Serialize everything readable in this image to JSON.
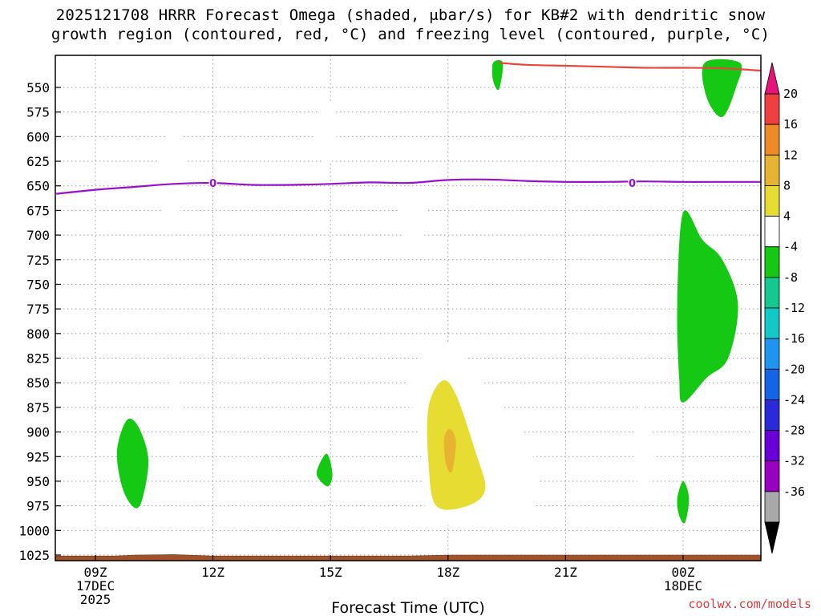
{
  "chart_data": {
    "type": "heatmap",
    "title_line1": "2025121708 HRRR Forecast Omega (shaded, μbar/s) for KB#2 with dendritic snow",
    "title_line2": "growth region (contoured, red, °C) and freezing level (contoured, purple, °C)",
    "xlabel": "Forecast Time (UTC)",
    "ylabel": "",
    "credit": "coolwx.com/models",
    "y_axis": {
      "ticks": [
        550,
        575,
        600,
        625,
        650,
        675,
        700,
        725,
        750,
        775,
        800,
        825,
        850,
        875,
        900,
        925,
        950,
        975,
        1000,
        1025
      ],
      "range": [
        525,
        1030
      ]
    },
    "x_axis": {
      "range_hours": [
        8,
        26
      ],
      "ticks": [
        {
          "hour": 9,
          "label": "09Z",
          "sub1": "17DEC",
          "sub2": "2025"
        },
        {
          "hour": 12,
          "label": "12Z",
          "sub1": "",
          "sub2": ""
        },
        {
          "hour": 15,
          "label": "15Z",
          "sub1": "",
          "sub2": ""
        },
        {
          "hour": 18,
          "label": "18Z",
          "sub1": "",
          "sub2": ""
        },
        {
          "hour": 21,
          "label": "21Z",
          "sub1": "",
          "sub2": ""
        },
        {
          "hour": 24,
          "label": "00Z",
          "sub1": "18DEC",
          "sub2": ""
        }
      ]
    },
    "colorbar": {
      "levels": [
        -36,
        -32,
        -28,
        -24,
        -20,
        -16,
        -12,
        -8,
        -4,
        4,
        8,
        12,
        16,
        20
      ],
      "colors": [
        "#a9a9a9",
        "#9900c0",
        "#6a00d8",
        "#2a2ad8",
        "#1464e6",
        "#1e96f0",
        "#14c8c8",
        "#14c890",
        "#14c814",
        "#ffffff",
        "#e6dc32",
        "#e6b432",
        "#ee8a28",
        "#ee4040"
      ],
      "extend_low_color": "#000000",
      "extend_high_color": "#e6147a"
    },
    "contour_labels": {
      "freezing_level": "0",
      "freezing_level_color": "#9a10c8",
      "dgz_color": "#e8463c"
    },
    "freezing_level": [
      {
        "t": 8.0,
        "p": 658
      },
      {
        "t": 9.0,
        "p": 654
      },
      {
        "t": 10.0,
        "p": 651
      },
      {
        "t": 11.0,
        "p": 648
      },
      {
        "t": 12.0,
        "p": 647
      },
      {
        "t": 13.0,
        "p": 649
      },
      {
        "t": 14.0,
        "p": 649
      },
      {
        "t": 15.0,
        "p": 648
      },
      {
        "t": 16.0,
        "p": 646.5
      },
      {
        "t": 17.0,
        "p": 647
      },
      {
        "t": 18.0,
        "p": 644
      },
      {
        "t": 19.0,
        "p": 643.5
      },
      {
        "t": 20.0,
        "p": 645
      },
      {
        "t": 21.0,
        "p": 646
      },
      {
        "t": 22.0,
        "p": 646
      },
      {
        "t": 23.0,
        "p": 645.5
      },
      {
        "t": 24.0,
        "p": 646
      },
      {
        "t": 25.0,
        "p": 646
      },
      {
        "t": 26.0,
        "p": 646
      }
    ],
    "dgz_top": [
      {
        "t": 19.3,
        "p": 525
      },
      {
        "t": 20.0,
        "p": 527
      },
      {
        "t": 21.0,
        "p": 528
      },
      {
        "t": 22.0,
        "p": 529
      },
      {
        "t": 23.0,
        "p": 530
      },
      {
        "t": 24.0,
        "p": 530
      },
      {
        "t": 25.0,
        "p": 530.5
      },
      {
        "t": 26.0,
        "p": 533
      }
    ],
    "omega_regions": [
      {
        "level": 4,
        "pts": [
          [
            10.6,
            632
          ],
          [
            11.0,
            583
          ],
          [
            11.35,
            632
          ],
          [
            11.0,
            690
          ],
          [
            10.6,
            660
          ]
        ]
      },
      {
        "level": 4,
        "pts": [
          [
            14.55,
            583
          ],
          [
            15.05,
            565
          ],
          [
            15.15,
            600
          ],
          [
            14.9,
            633
          ],
          [
            14.6,
            605
          ]
        ]
      },
      {
        "level": 4,
        "pts": [
          [
            16.7,
            680
          ],
          [
            17.1,
            651
          ],
          [
            17.5,
            680
          ],
          [
            17.1,
            722
          ]
        ]
      },
      {
        "level": 4,
        "pts": [
          [
            10.85,
            868
          ],
          [
            11.0,
            840
          ],
          [
            11.2,
            873
          ],
          [
            11.0,
            886
          ]
        ]
      },
      {
        "level": 4,
        "pts": [
          [
            22.75,
            923
          ],
          [
            22.95,
            873
          ],
          [
            23.25,
            928
          ],
          [
            22.95,
            963
          ]
        ]
      },
      {
        "level": 4,
        "pts": [
          [
            25.8,
            898
          ],
          [
            26.0,
            862
          ],
          [
            26.0,
            922
          ],
          [
            25.8,
            910
          ]
        ]
      },
      {
        "level": 4,
        "pts": [
          [
            17.0,
            840
          ],
          [
            17.7,
            812
          ],
          [
            18.2,
            814
          ],
          [
            18.7,
            840
          ],
          [
            19.5,
            880
          ],
          [
            20.0,
            905
          ],
          [
            20.3,
            957
          ],
          [
            19.9,
            988
          ],
          [
            18.5,
            995
          ],
          [
            17.8,
            992
          ],
          [
            17.4,
            975
          ],
          [
            17.3,
            920
          ],
          [
            17.05,
            865
          ]
        ]
      },
      {
        "level": 8,
        "pts": [
          [
            17.5,
            875
          ],
          [
            17.85,
            848
          ],
          [
            18.2,
            862
          ],
          [
            18.7,
            920
          ],
          [
            18.95,
            958
          ],
          [
            18.5,
            975
          ],
          [
            17.7,
            975
          ],
          [
            17.5,
            930
          ]
        ]
      },
      {
        "level": 12,
        "pts": [
          [
            17.9,
            907
          ],
          [
            18.05,
            897
          ],
          [
            18.2,
            910
          ],
          [
            18.1,
            940
          ],
          [
            17.95,
            933
          ]
        ]
      },
      {
        "level": -4,
        "pts": [
          [
            19.15,
            525
          ],
          [
            19.4,
            525
          ],
          [
            19.3,
            552
          ],
          [
            19.15,
            543
          ]
        ]
      },
      {
        "level": -4,
        "pts": [
          [
            24.55,
            525
          ],
          [
            25.45,
            525
          ],
          [
            25.35,
            550
          ],
          [
            25.0,
            580
          ],
          [
            24.6,
            560
          ]
        ]
      },
      {
        "level": -4,
        "pts": [
          [
            23.85,
            770
          ],
          [
            24.0,
            677
          ],
          [
            24.5,
            705
          ],
          [
            25.0,
            725
          ],
          [
            25.4,
            770
          ],
          [
            25.15,
            825
          ],
          [
            24.6,
            845
          ],
          [
            24.0,
            870
          ],
          [
            23.9,
            845
          ]
        ]
      },
      {
        "level": -4,
        "pts": [
          [
            9.55,
            920
          ],
          [
            9.8,
            888
          ],
          [
            10.1,
            895
          ],
          [
            10.35,
            928
          ],
          [
            10.2,
            968
          ],
          [
            10.0,
            977
          ],
          [
            9.7,
            958
          ]
        ]
      },
      {
        "level": -4,
        "pts": [
          [
            14.65,
            940
          ],
          [
            14.9,
            922
          ],
          [
            15.05,
            942
          ],
          [
            14.95,
            955
          ],
          [
            14.75,
            950
          ]
        ]
      },
      {
        "level": -4,
        "pts": [
          [
            23.85,
            968
          ],
          [
            24.0,
            950
          ],
          [
            24.15,
            967
          ],
          [
            24.05,
            992
          ],
          [
            23.9,
            985
          ]
        ]
      }
    ],
    "terrain_top": [
      {
        "t": 8.0,
        "p": 1026
      },
      {
        "t": 9.5,
        "p": 1026
      },
      {
        "t": 10.0,
        "p": 1025
      },
      {
        "t": 11.0,
        "p": 1024.5
      },
      {
        "t": 12.0,
        "p": 1026
      },
      {
        "t": 17.0,
        "p": 1026
      },
      {
        "t": 18.0,
        "p": 1025
      },
      {
        "t": 26.0,
        "p": 1025
      }
    ],
    "terrain_color": "#a0522d"
  }
}
